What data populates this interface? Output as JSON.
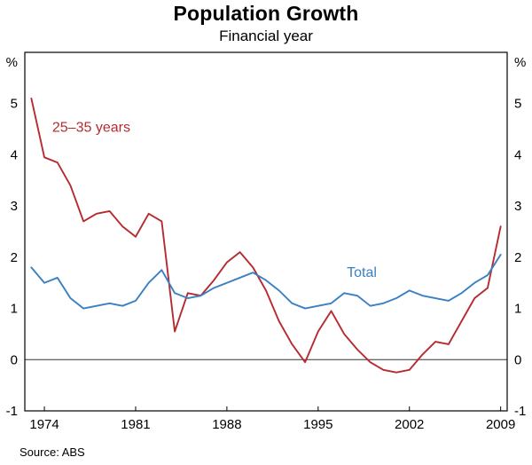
{
  "chart_data": {
    "type": "line",
    "title": "Population Growth",
    "subtitle": "Financial year",
    "y_unit_left": "%",
    "y_unit_right": "%",
    "source": "Source: ABS",
    "grid": false,
    "legend_position": "inline-labels",
    "xlim": [
      1972.5,
      2009.5
    ],
    "ylim": [
      -1,
      6
    ],
    "yticks": [
      -1,
      0,
      1,
      2,
      3,
      4,
      5
    ],
    "xticks": [
      1974,
      1981,
      1988,
      1995,
      2002,
      2009
    ],
    "x": [
      1973,
      1974,
      1975,
      1976,
      1977,
      1978,
      1979,
      1980,
      1981,
      1982,
      1983,
      1984,
      1985,
      1986,
      1987,
      1988,
      1989,
      1990,
      1991,
      1992,
      1993,
      1994,
      1995,
      1996,
      1997,
      1998,
      1999,
      2000,
      2001,
      2002,
      2003,
      2004,
      2005,
      2006,
      2007,
      2008,
      2009
    ],
    "series": [
      {
        "name": "25–35 years",
        "color": "#b52b30",
        "values": [
          5.1,
          3.95,
          3.85,
          3.4,
          2.7,
          2.85,
          2.9,
          2.6,
          2.4,
          2.85,
          2.7,
          0.55,
          1.3,
          1.25,
          1.55,
          1.9,
          2.1,
          1.8,
          1.35,
          0.75,
          0.3,
          -0.05,
          0.55,
          0.95,
          0.5,
          0.2,
          -0.05,
          -0.2,
          -0.25,
          -0.2,
          0.1,
          0.35,
          0.3,
          0.75,
          1.2,
          1.4,
          2.6
        ]
      },
      {
        "name": "Total",
        "color": "#3a80c2",
        "values": [
          1.8,
          1.5,
          1.6,
          1.2,
          1.0,
          1.05,
          1.1,
          1.05,
          1.15,
          1.5,
          1.75,
          1.3,
          1.2,
          1.25,
          1.4,
          1.5,
          1.6,
          1.7,
          1.55,
          1.35,
          1.1,
          1.0,
          1.05,
          1.1,
          1.3,
          1.25,
          1.05,
          1.1,
          1.2,
          1.35,
          1.25,
          1.2,
          1.15,
          1.3,
          1.5,
          1.65,
          2.05
        ]
      }
    ],
    "annotations": [
      {
        "text": "25–35 years",
        "x": 1974.6,
        "y": 4.45,
        "color": "#b52b30"
      },
      {
        "text": "Total",
        "x": 1997.2,
        "y": 1.62,
        "color": "#3a80c2"
      }
    ]
  }
}
